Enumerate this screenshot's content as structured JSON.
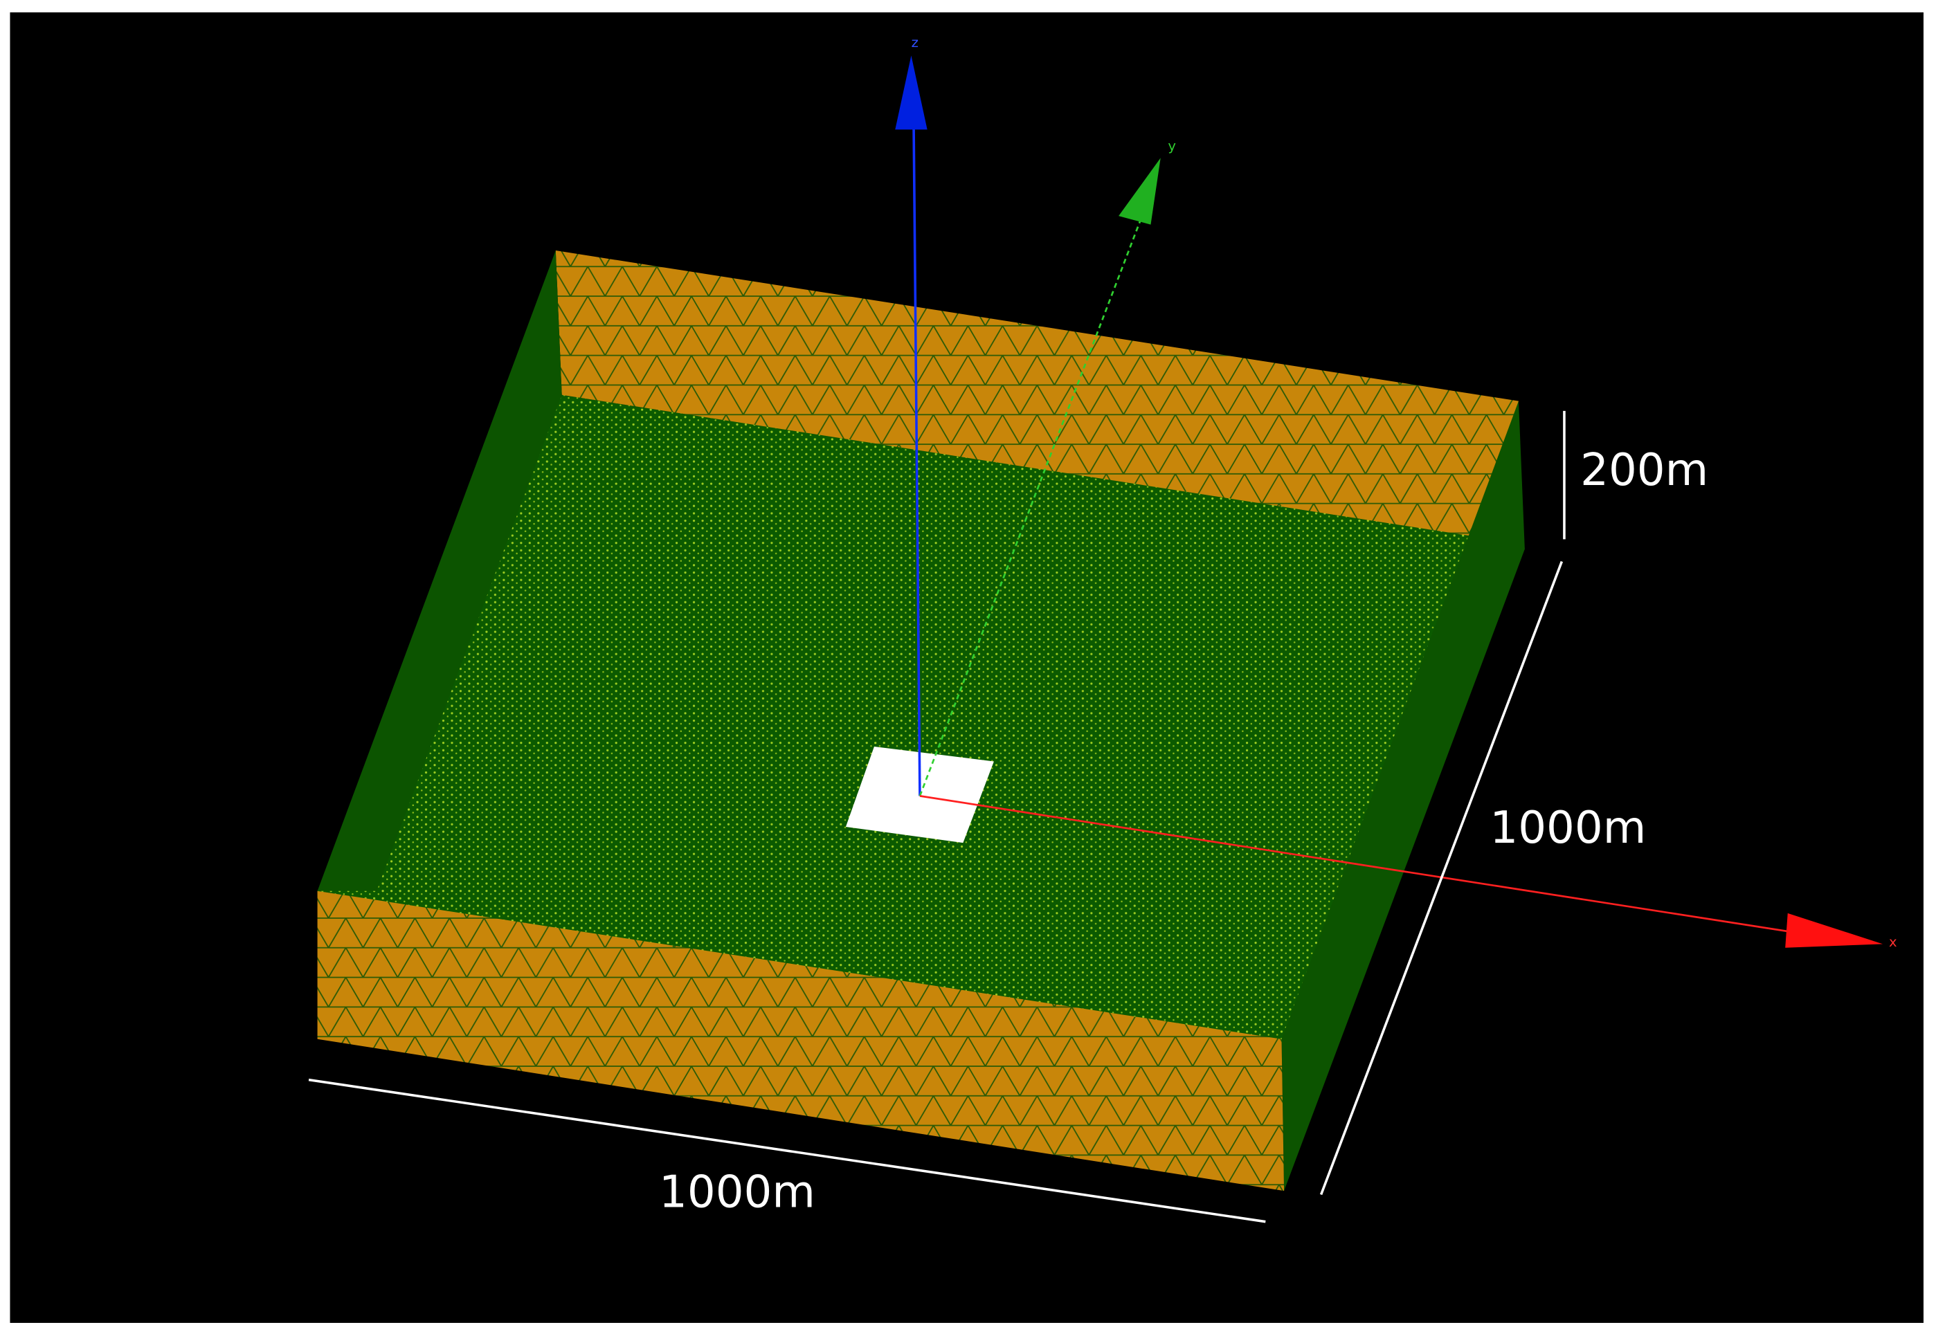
{
  "axes": {
    "z": "z",
    "y": "y",
    "x": "x"
  },
  "dimensions": {
    "height": "200m",
    "depth": "1000m",
    "width": "1000m"
  }
}
